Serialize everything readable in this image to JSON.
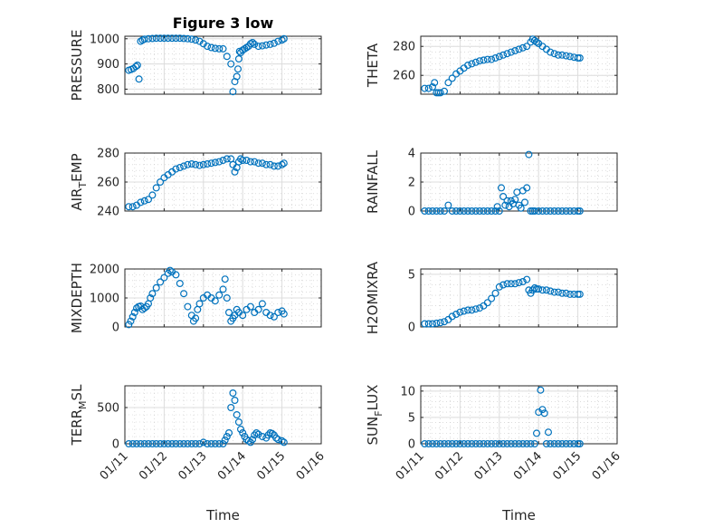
{
  "chart_data": [
    {
      "id": "pressure",
      "type": "scatter",
      "title": "Figure 3 low",
      "ylabel": "PRESSURE",
      "ylim": [
        780,
        1010
      ],
      "yticks": [
        800,
        900,
        1000
      ],
      "xlim": [
        0,
        5
      ],
      "x": [
        0.1,
        0.16,
        0.22,
        0.28,
        0.32,
        0.36,
        0.4,
        0.45,
        0.5,
        0.6,
        0.7,
        0.8,
        0.9,
        1.0,
        1.1,
        1.2,
        1.3,
        1.4,
        1.5,
        1.6,
        1.7,
        1.8,
        1.9,
        2.0,
        2.1,
        2.2,
        2.3,
        2.4,
        2.5,
        2.6,
        2.7,
        2.75,
        2.8,
        2.85,
        2.88,
        2.9,
        2.92,
        2.95,
        3.0,
        3.05,
        3.1,
        3.15,
        3.2,
        3.25,
        3.3,
        3.4,
        3.5,
        3.6,
        3.7,
        3.8,
        3.9,
        4.0,
        4.05
      ],
      "y": [
        875,
        878,
        882,
        890,
        895,
        840,
        990,
        995,
        998,
        1000,
        1001,
        1002,
        1002,
        1002,
        1002,
        1002,
        1002,
        1002,
        1001,
        1000,
        998,
        995,
        990,
        980,
        970,
        965,
        962,
        960,
        960,
        930,
        900,
        790,
        830,
        850,
        880,
        920,
        950,
        945,
        955,
        960,
        965,
        970,
        980,
        985,
        978,
        970,
        972,
        975,
        978,
        982,
        990,
        995,
        1000
      ]
    },
    {
      "id": "theta",
      "type": "scatter",
      "ylabel": "THETA",
      "ylim": [
        247,
        287
      ],
      "yticks": [
        260,
        280
      ],
      "xlim": [
        0,
        5
      ],
      "x": [
        0.1,
        0.2,
        0.3,
        0.35,
        0.4,
        0.45,
        0.5,
        0.6,
        0.7,
        0.8,
        0.9,
        1.0,
        1.1,
        1.2,
        1.3,
        1.4,
        1.5,
        1.6,
        1.7,
        1.8,
        1.9,
        2.0,
        2.1,
        2.2,
        2.3,
        2.4,
        2.5,
        2.6,
        2.7,
        2.8,
        2.85,
        2.9,
        2.95,
        3.0,
        3.1,
        3.2,
        3.3,
        3.4,
        3.5,
        3.6,
        3.7,
        3.8,
        3.9,
        4.0,
        4.05
      ],
      "y": [
        251,
        251,
        252,
        255,
        248,
        248,
        248,
        249,
        255,
        258,
        261,
        263,
        265,
        267,
        268,
        269,
        270,
        270.5,
        271,
        271,
        272,
        273,
        274,
        275,
        276,
        277,
        278,
        279,
        280,
        283,
        285,
        284,
        283,
        282,
        280,
        278,
        276,
        275,
        274,
        274,
        273.5,
        273,
        272.5,
        272,
        272
      ]
    },
    {
      "id": "air_temp",
      "type": "scatter",
      "ylabel": "AIR_TEMP",
      "ylim": [
        240,
        280
      ],
      "yticks": [
        240,
        260,
        280
      ],
      "xlim": [
        0,
        5
      ],
      "x": [
        0.1,
        0.2,
        0.3,
        0.4,
        0.5,
        0.6,
        0.7,
        0.8,
        0.9,
        1.0,
        1.1,
        1.2,
        1.3,
        1.4,
        1.5,
        1.6,
        1.7,
        1.8,
        1.9,
        2.0,
        2.1,
        2.2,
        2.3,
        2.4,
        2.5,
        2.6,
        2.7,
        2.75,
        2.8,
        2.85,
        2.9,
        2.95,
        3.0,
        3.1,
        3.2,
        3.3,
        3.4,
        3.5,
        3.6,
        3.7,
        3.8,
        3.9,
        4.0,
        4.05
      ],
      "y": [
        243,
        243,
        244,
        246,
        247,
        248,
        251,
        256,
        260,
        263,
        265,
        267,
        269,
        270,
        271,
        272,
        272.5,
        272,
        271.5,
        272,
        272.5,
        273,
        273.5,
        274,
        275,
        276,
        276,
        272,
        267,
        270,
        274,
        276,
        275,
        275,
        274,
        274,
        273,
        273,
        272,
        272,
        271,
        271,
        272,
        273
      ]
    },
    {
      "id": "rainfall",
      "type": "scatter",
      "ylabel": "RAINFALL",
      "ylim": [
        0,
        4
      ],
      "yticks": [
        0,
        2,
        4
      ],
      "xlim": [
        0,
        5
      ],
      "x": [
        0.1,
        0.2,
        0.3,
        0.4,
        0.5,
        0.6,
        0.7,
        0.8,
        0.9,
        1.0,
        1.1,
        1.2,
        1.3,
        1.4,
        1.5,
        1.6,
        1.7,
        1.8,
        1.9,
        1.95,
        2.0,
        2.05,
        2.1,
        2.15,
        2.2,
        2.25,
        2.3,
        2.35,
        2.4,
        2.45,
        2.5,
        2.55,
        2.6,
        2.65,
        2.7,
        2.75,
        2.8,
        2.85,
        2.9,
        3.0,
        3.1,
        3.2,
        3.3,
        3.4,
        3.5,
        3.6,
        3.7,
        3.8,
        3.9,
        4.0,
        4.05
      ],
      "y": [
        0,
        0,
        0,
        0,
        0,
        0,
        0.4,
        0,
        0,
        0,
        0,
        0,
        0,
        0,
        0,
        0,
        0,
        0,
        0,
        0.3,
        0,
        1.6,
        1.0,
        0.4,
        0.7,
        0.3,
        0.7,
        0.5,
        0.8,
        1.3,
        0.4,
        0.2,
        1.4,
        0.6,
        1.6,
        3.9,
        0,
        0,
        0,
        0,
        0,
        0,
        0,
        0,
        0,
        0,
        0,
        0,
        0,
        0,
        0
      ]
    },
    {
      "id": "mixdepth",
      "type": "scatter",
      "ylabel": "MIXDEPTH",
      "ylim": [
        0,
        2000
      ],
      "yticks": [
        0,
        1000,
        2000
      ],
      "xlim": [
        0,
        5
      ],
      "x": [
        0.1,
        0.15,
        0.2,
        0.25,
        0.3,
        0.35,
        0.4,
        0.45,
        0.5,
        0.55,
        0.6,
        0.65,
        0.7,
        0.8,
        0.9,
        1.0,
        1.1,
        1.15,
        1.2,
        1.3,
        1.4,
        1.5,
        1.6,
        1.7,
        1.75,
        1.8,
        1.85,
        1.9,
        2.0,
        2.1,
        2.2,
        2.3,
        2.4,
        2.5,
        2.55,
        2.6,
        2.65,
        2.7,
        2.75,
        2.8,
        2.85,
        2.9,
        3.0,
        3.1,
        3.2,
        3.3,
        3.4,
        3.5,
        3.6,
        3.7,
        3.8,
        3.9,
        4.0,
        4.05
      ],
      "y": [
        80,
        200,
        350,
        500,
        650,
        700,
        720,
        600,
        650,
        700,
        800,
        1000,
        1150,
        1350,
        1550,
        1700,
        1850,
        1950,
        1900,
        1800,
        1500,
        1150,
        700,
        400,
        200,
        300,
        600,
        800,
        1000,
        1100,
        1000,
        900,
        1100,
        1300,
        1650,
        1000,
        500,
        200,
        300,
        400,
        600,
        500,
        400,
        600,
        700,
        500,
        600,
        800,
        500,
        400,
        350,
        500,
        550,
        450
      ]
    },
    {
      "id": "h2omixra",
      "type": "scatter",
      "ylabel": "H2OMIXRA",
      "ylim": [
        0,
        5.5
      ],
      "yticks": [
        0,
        5
      ],
      "xlim": [
        0,
        5
      ],
      "x": [
        0.1,
        0.2,
        0.3,
        0.4,
        0.5,
        0.6,
        0.7,
        0.8,
        0.9,
        1.0,
        1.1,
        1.2,
        1.3,
        1.4,
        1.5,
        1.6,
        1.7,
        1.8,
        1.9,
        2.0,
        2.1,
        2.2,
        2.3,
        2.4,
        2.5,
        2.6,
        2.7,
        2.75,
        2.8,
        2.85,
        2.9,
        2.95,
        3.0,
        3.1,
        3.2,
        3.3,
        3.4,
        3.5,
        3.6,
        3.7,
        3.8,
        3.9,
        4.0,
        4.05
      ],
      "y": [
        0.3,
        0.3,
        0.3,
        0.35,
        0.4,
        0.5,
        0.7,
        1.0,
        1.2,
        1.4,
        1.5,
        1.6,
        1.6,
        1.7,
        1.8,
        2.0,
        2.3,
        2.7,
        3.2,
        3.8,
        4.0,
        4.1,
        4.1,
        4.1,
        4.2,
        4.3,
        4.5,
        3.5,
        3.2,
        3.5,
        3.7,
        3.6,
        3.6,
        3.5,
        3.5,
        3.4,
        3.3,
        3.3,
        3.2,
        3.2,
        3.1,
        3.1,
        3.1,
        3.1
      ]
    },
    {
      "id": "terr_msl",
      "type": "scatter",
      "ylabel": "TERR_MSL",
      "ylim": [
        0,
        800
      ],
      "yticks": [
        0,
        500
      ],
      "xlim": [
        0,
        5
      ],
      "xticklabels": [
        "01/11",
        "01/12",
        "01/13",
        "01/14",
        "01/15",
        "01/16"
      ],
      "xlabel": "Time",
      "x": [
        0.1,
        0.2,
        0.3,
        0.4,
        0.5,
        0.6,
        0.7,
        0.8,
        0.9,
        1.0,
        1.1,
        1.2,
        1.3,
        1.4,
        1.5,
        1.6,
        1.7,
        1.8,
        1.9,
        2.0,
        2.1,
        2.2,
        2.3,
        2.4,
        2.5,
        2.55,
        2.6,
        2.65,
        2.7,
        2.75,
        2.8,
        2.85,
        2.9,
        2.95,
        3.0,
        3.05,
        3.1,
        3.15,
        3.2,
        3.25,
        3.3,
        3.35,
        3.4,
        3.5,
        3.6,
        3.65,
        3.7,
        3.75,
        3.8,
        3.85,
        3.9,
        4.0,
        4.05
      ],
      "y": [
        0,
        0,
        0,
        0,
        0,
        0,
        0,
        0,
        0,
        0,
        0,
        0,
        0,
        0,
        0,
        0,
        0,
        0,
        0,
        20,
        0,
        0,
        0,
        0,
        0,
        50,
        100,
        150,
        500,
        700,
        600,
        400,
        300,
        200,
        150,
        100,
        60,
        40,
        20,
        60,
        120,
        150,
        130,
        100,
        80,
        120,
        150,
        140,
        120,
        80,
        60,
        40,
        20
      ]
    },
    {
      "id": "sun_flux",
      "type": "scatter",
      "ylabel": "SUN_FLUX",
      "ylim": [
        0,
        11
      ],
      "yticks": [
        0,
        5,
        10
      ],
      "xlim": [
        0,
        5
      ],
      "xticklabels": [
        "01/11",
        "01/12",
        "01/13",
        "01/14",
        "01/15",
        "01/16"
      ],
      "xlabel": "Time",
      "x": [
        0.1,
        0.2,
        0.3,
        0.4,
        0.5,
        0.6,
        0.7,
        0.8,
        0.9,
        1.0,
        1.1,
        1.2,
        1.3,
        1.4,
        1.5,
        1.6,
        1.7,
        1.8,
        1.9,
        2.0,
        2.1,
        2.2,
        2.3,
        2.4,
        2.5,
        2.6,
        2.7,
        2.8,
        2.9,
        2.95,
        3.0,
        3.05,
        3.1,
        3.15,
        3.2,
        3.25,
        3.3,
        3.4,
        3.5,
        3.6,
        3.7,
        3.8,
        3.9,
        4.0,
        4.05
      ],
      "y": [
        0,
        0,
        0,
        0,
        0,
        0,
        0,
        0,
        0,
        0,
        0,
        0,
        0,
        0,
        0,
        0,
        0,
        0,
        0,
        0,
        0,
        0,
        0,
        0,
        0,
        0,
        0,
        0,
        0,
        2.0,
        6.0,
        10.2,
        6.5,
        5.8,
        0,
        2.2,
        0,
        0,
        0,
        0,
        0,
        0,
        0,
        0,
        0
      ]
    }
  ]
}
